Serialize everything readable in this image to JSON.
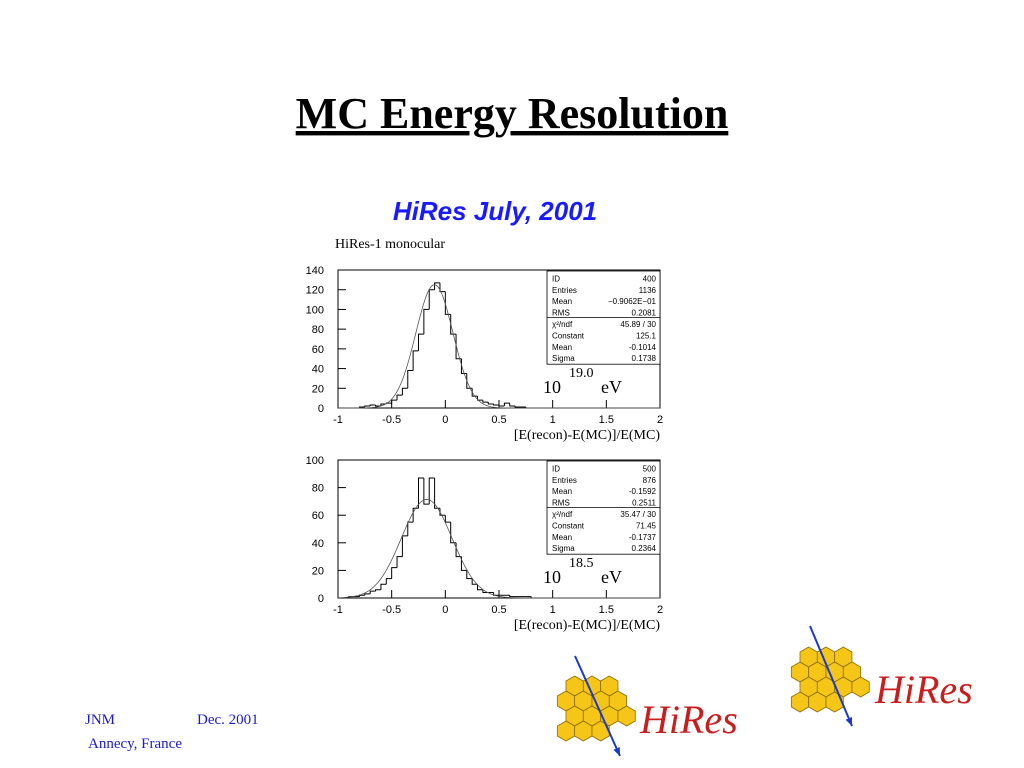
{
  "title": "MC Energy Resolution",
  "subtitle": "HiRes July, 2001",
  "caption": "HiRes-1 monocular",
  "footer": {
    "author": "JNM",
    "date": "Dec. 2001",
    "place": "Annecy, France"
  },
  "logos": [
    "HiRes",
    "HiRes"
  ],
  "chart_data": [
    {
      "type": "histogram",
      "bins": [
        -1,
        -0.95,
        -0.9,
        -0.85,
        -0.8,
        -0.75,
        -0.7,
        -0.65,
        -0.6,
        -0.55,
        -0.5,
        -0.45,
        -0.4,
        -0.35,
        -0.3,
        -0.25,
        -0.2,
        -0.15,
        -0.1,
        -0.05,
        0,
        0.05,
        0.1,
        0.15,
        0.2,
        0.25,
        0.3,
        0.35,
        0.4,
        0.45,
        0.5,
        0.55,
        0.6,
        0.65,
        0.7,
        0.75,
        0.8,
        0.85,
        0.9,
        0.95,
        1,
        1.05,
        1.1,
        1.15,
        1.2,
        1.25,
        1.3,
        1.35,
        1.4,
        1.45,
        1.5,
        1.55,
        1.6,
        1.65,
        1.7,
        1.75,
        1.8,
        1.85,
        1.9,
        1.95,
        2
      ],
      "values": [
        0,
        0,
        0,
        0,
        1,
        2,
        3,
        2,
        4,
        5,
        8,
        13,
        20,
        38,
        58,
        75,
        100,
        120,
        127,
        118,
        95,
        75,
        50,
        35,
        20,
        12,
        8,
        6,
        4,
        3,
        2,
        5,
        2,
        1,
        1,
        0,
        0,
        0,
        0,
        0,
        0,
        0,
        0,
        0,
        0,
        0,
        0,
        0,
        0,
        0,
        0,
        0,
        0,
        0,
        0,
        0,
        0,
        0,
        0,
        0
      ],
      "xlim": [
        -1,
        2
      ],
      "ylim": [
        0,
        140
      ],
      "xticks": [
        -1,
        -0.5,
        0,
        0.5,
        1,
        1.5,
        2
      ],
      "yticks": [
        0,
        20,
        40,
        60,
        80,
        100,
        120,
        140
      ],
      "xlabel": "[E(recon)-E(MC)]/E(MC)",
      "stats": [
        {
          "name": "ID",
          "value": 400
        },
        {
          "name": "Entries",
          "value": 1136
        },
        {
          "name": "Mean",
          "value": "−0.9062E−01"
        },
        {
          "name": "RMS",
          "value": 0.2081
        },
        {
          "name": "χ²/ndf",
          "value": "45.89  /   30"
        },
        {
          "name": "Constant",
          "value": 125.1
        },
        {
          "name": "Mean",
          "value": -0.1014
        },
        {
          "name": "Sigma",
          "value": 0.1738
        }
      ],
      "energy": {
        "base": "10",
        "exponent": "19.0",
        "unit": "eV"
      }
    },
    {
      "type": "histogram",
      "bins": [
        -1,
        -0.95,
        -0.9,
        -0.85,
        -0.8,
        -0.75,
        -0.7,
        -0.65,
        -0.6,
        -0.55,
        -0.5,
        -0.45,
        -0.4,
        -0.35,
        -0.3,
        -0.25,
        -0.2,
        -0.15,
        -0.1,
        -0.05,
        0,
        0.05,
        0.1,
        0.15,
        0.2,
        0.25,
        0.3,
        0.35,
        0.4,
        0.45,
        0.5,
        0.55,
        0.6,
        0.65,
        0.7,
        0.75,
        0.8,
        0.85,
        0.9,
        0.95,
        1,
        1.05,
        1.1,
        1.15,
        1.2,
        1.25,
        1.3,
        1.35,
        1.4,
        1.45,
        1.5,
        1.55,
        1.6,
        1.65,
        1.7,
        1.75,
        1.8,
        1.85,
        1.9,
        1.95,
        2
      ],
      "values": [
        0,
        0,
        1,
        1,
        2,
        3,
        5,
        6,
        10,
        14,
        22,
        30,
        45,
        55,
        65,
        87,
        68,
        87,
        65,
        60,
        55,
        40,
        30,
        20,
        14,
        10,
        6,
        4,
        4,
        2,
        2,
        2,
        1,
        1,
        1,
        1,
        0,
        0,
        0,
        0,
        0,
        0,
        0,
        0,
        0,
        0,
        0,
        0,
        0,
        0,
        0,
        0,
        0,
        0,
        0,
        0,
        0,
        0,
        0,
        0
      ],
      "xlim": [
        -1,
        2
      ],
      "ylim": [
        0,
        100
      ],
      "xticks": [
        -1,
        -0.5,
        0,
        0.5,
        1,
        1.5,
        2
      ],
      "yticks": [
        0,
        20,
        40,
        60,
        80,
        100
      ],
      "xlabel": "[E(recon)-E(MC)]/E(MC)",
      "stats": [
        {
          "name": "ID",
          "value": 500
        },
        {
          "name": "Entries",
          "value": 876
        },
        {
          "name": "Mean",
          "value": -0.1592
        },
        {
          "name": "RMS",
          "value": 0.2511
        },
        {
          "name": "χ²/ndf",
          "value": "35.47  /   30"
        },
        {
          "name": "Constant",
          "value": 71.45
        },
        {
          "name": "Mean",
          "value": -0.1737
        },
        {
          "name": "Sigma",
          "value": 0.2364
        }
      ],
      "energy": {
        "base": "10",
        "exponent": "18.5",
        "unit": "eV"
      }
    }
  ]
}
